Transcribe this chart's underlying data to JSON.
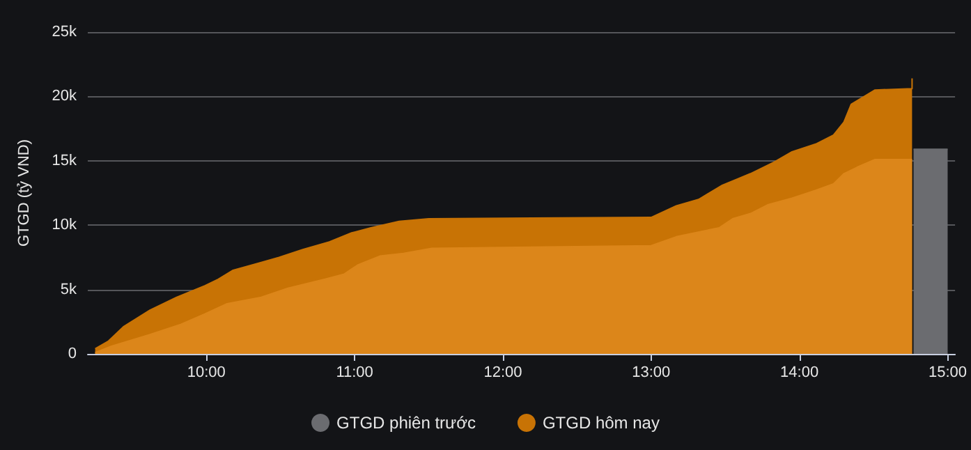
{
  "chart_data": {
    "type": "area",
    "ylabel": "GTGD (tỷ VND)",
    "xlim": [
      9.2,
      15.05
    ],
    "ylim": [
      0,
      25000
    ],
    "xticks": [
      {
        "value": 10,
        "label": "10:00"
      },
      {
        "value": 11,
        "label": "11:00"
      },
      {
        "value": 12,
        "label": "12:00"
      },
      {
        "value": 13,
        "label": "13:00"
      },
      {
        "value": 14,
        "label": "14:00"
      },
      {
        "value": 15,
        "label": "15:00"
      }
    ],
    "yticks": [
      {
        "value": 0,
        "label": "0"
      },
      {
        "value": 5000,
        "label": "5k"
      },
      {
        "value": 10000,
        "label": "10k"
      },
      {
        "value": 15000,
        "label": "15k"
      },
      {
        "value": 20000,
        "label": "20k"
      },
      {
        "value": 25000,
        "label": "25k"
      }
    ],
    "grid": "y",
    "legend": "bottom",
    "marker": "none",
    "series": [
      {
        "name": "GTGD phiên trước",
        "color": "#6b6c70",
        "x": [
          14.77,
          15.0
        ],
        "values": [
          15900,
          15900
        ]
      },
      {
        "name": "GTGD hôm nay",
        "color": "#c87305",
        "x": [
          9.25,
          9.34,
          9.44,
          9.62,
          9.8,
          9.99,
          10.08,
          10.18,
          10.37,
          10.49,
          10.65,
          10.83,
          10.98,
          11.11,
          11.3,
          11.5,
          13.0,
          13.17,
          13.32,
          13.48,
          13.67,
          13.83,
          13.95,
          14.11,
          14.23,
          14.3,
          14.35,
          14.51,
          14.76,
          14.76
        ],
        "values": [
          400,
          1000,
          2100,
          3400,
          4400,
          5300,
          5800,
          6500,
          7100,
          7500,
          8100,
          8700,
          9400,
          9800,
          10300,
          10500,
          10600,
          11500,
          12000,
          13100,
          14000,
          14900,
          15700,
          16300,
          17000,
          18000,
          19400,
          20500,
          20600,
          21400
        ]
      },
      {
        "color": "#dc861a",
        "x": [
          9.25,
          9.36,
          9.62,
          9.83,
          9.99,
          10.14,
          10.37,
          10.55,
          10.8,
          10.93,
          11.02,
          11.17,
          11.33,
          11.52,
          13.0,
          13.17,
          13.46,
          13.55,
          13.67,
          13.79,
          13.95,
          14.11,
          14.23,
          14.3,
          14.39,
          14.51,
          14.76
        ],
        "values": [
          100,
          600,
          1500,
          2300,
          3100,
          3900,
          4400,
          5100,
          5800,
          6200,
          6900,
          7600,
          7800,
          8200,
          8400,
          9100,
          9800,
          10500,
          10900,
          11600,
          12100,
          12700,
          13200,
          14000,
          14500,
          15100,
          15100
        ]
      }
    ]
  }
}
